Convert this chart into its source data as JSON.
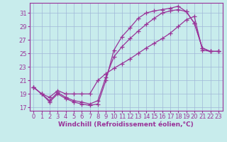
{
  "background_color": "#c8ecec",
  "grid_color": "#a0b8d8",
  "line_color": "#993399",
  "marker": "+",
  "markersize": 4,
  "linewidth": 0.9,
  "xlabel": "Windchill (Refroidissement éolien,°C)",
  "xlabel_fontsize": 6.5,
  "tick_fontsize": 6,
  "ylim": [
    16.5,
    32.5
  ],
  "xlim": [
    -0.5,
    23.5
  ],
  "yticks": [
    17,
    19,
    21,
    23,
    25,
    27,
    29,
    31
  ],
  "xticks": [
    0,
    1,
    2,
    3,
    4,
    5,
    6,
    7,
    8,
    9,
    10,
    11,
    12,
    13,
    14,
    15,
    16,
    17,
    18,
    19,
    20,
    21,
    22,
    23
  ],
  "series": [
    [
      20.0,
      19.0,
      17.8,
      19.0,
      18.3,
      17.8,
      17.5,
      17.3,
      17.5,
      21.0,
      25.5,
      27.5,
      28.8,
      30.2,
      31.0,
      31.3,
      31.5,
      31.7,
      32.0,
      31.2,
      29.5,
      25.8,
      25.3,
      25.3
    ],
    [
      20.0,
      19.0,
      18.0,
      19.2,
      18.5,
      18.0,
      17.8,
      17.5,
      18.0,
      21.5,
      24.5,
      26.0,
      27.2,
      28.3,
      29.3,
      30.2,
      31.0,
      31.3,
      31.5,
      31.2,
      29.5,
      25.8,
      25.3,
      25.3
    ],
    [
      20.0,
      19.0,
      18.5,
      19.5,
      19.0,
      19.0,
      19.0,
      19.0,
      21.0,
      22.0,
      22.8,
      23.5,
      24.2,
      25.0,
      25.8,
      26.5,
      27.2,
      28.0,
      29.0,
      30.0,
      30.5,
      25.5,
      25.3,
      25.3
    ]
  ]
}
